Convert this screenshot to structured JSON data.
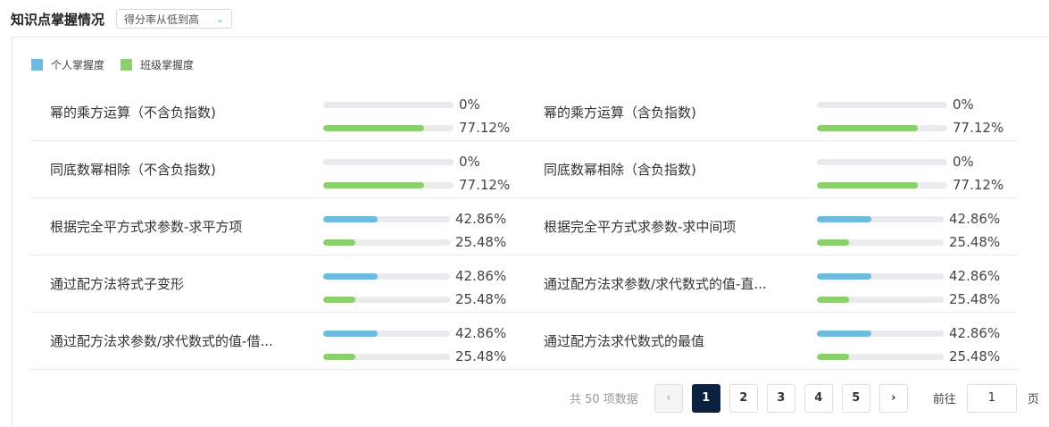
{
  "header": {
    "title": "知识点掌握情况",
    "sort_select": "得分率从低到高"
  },
  "legend": {
    "personal": {
      "label": "个人掌握度",
      "color": "#6fbadf"
    },
    "class": {
      "label": "班级掌握度",
      "color": "#8ccf6c"
    }
  },
  "items": [
    {
      "name": "幂的乘方运算（不含负指数)",
      "personal": 0,
      "personal_text": "0%",
      "class": 77.12,
      "class_text": "77.12%"
    },
    {
      "name": "幂的乘方运算（含负指数)",
      "personal": 0,
      "personal_text": "0%",
      "class": 77.12,
      "class_text": "77.12%"
    },
    {
      "name": "同底数幂相除（不含负指数)",
      "personal": 0,
      "personal_text": "0%",
      "class": 77.12,
      "class_text": "77.12%"
    },
    {
      "name": "同底数幂相除（含负指数)",
      "personal": 0,
      "personal_text": "0%",
      "class": 77.12,
      "class_text": "77.12%"
    },
    {
      "name": "根据完全平方式求参数-求平方项",
      "personal": 42.86,
      "personal_text": "42.86%",
      "class": 25.48,
      "class_text": "25.48%"
    },
    {
      "name": "根据完全平方式求参数-求中间项",
      "personal": 42.86,
      "personal_text": "42.86%",
      "class": 25.48,
      "class_text": "25.48%"
    },
    {
      "name": "通过配方法将式子变形",
      "personal": 42.86,
      "personal_text": "42.86%",
      "class": 25.48,
      "class_text": "25.48%"
    },
    {
      "name": "通过配方法求参数/求代数式的值-直...",
      "personal": 42.86,
      "personal_text": "42.86%",
      "class": 25.48,
      "class_text": "25.48%"
    },
    {
      "name": "通过配方法求参数/求代数式的值-借...",
      "personal": 42.86,
      "personal_text": "42.86%",
      "class": 25.48,
      "class_text": "25.48%"
    },
    {
      "name": "通过配方法求代数式的最值",
      "personal": 42.86,
      "personal_text": "42.86%",
      "class": 25.48,
      "class_text": "25.48%"
    }
  ],
  "pagination": {
    "total": "共 50 项数据",
    "prev": "‹",
    "next": "›",
    "pages": [
      "1",
      "2",
      "3",
      "4",
      "5"
    ],
    "current": "1",
    "goto_label": "前往",
    "goto_value": "1",
    "page_suffix": "页"
  }
}
